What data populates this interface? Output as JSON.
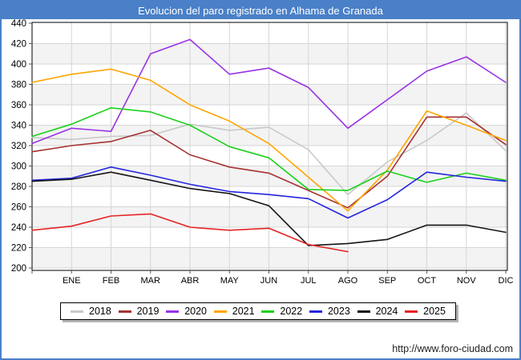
{
  "header": {
    "title": "Evolucion del paro registrado en Alhama de Granada"
  },
  "footer": {
    "url": "http://www.foro-ciudad.com"
  },
  "chart_data": {
    "type": "line",
    "title": "Evolucion del paro registrado en Alhama de Granada",
    "categories": [
      "ENE",
      "FEB",
      "MAR",
      "ABR",
      "MAY",
      "JUN",
      "JUL",
      "AGO",
      "SEP",
      "OCT",
      "NOV",
      "DIC"
    ],
    "xlabel": "",
    "ylabel": "",
    "ylim": [
      200,
      440
    ],
    "ytick_step": 20,
    "grid": true,
    "legend_position": "bottom",
    "plot_band_color": "#f3f3f3",
    "grid_color": "#d6d6d6",
    "series": [
      {
        "name": "2018",
        "color": "#c9c9c9",
        "axis_start": 328,
        "values": [
          326,
          329,
          330,
          341,
          335,
          338,
          316,
          272,
          304,
          325,
          352,
          315
        ]
      },
      {
        "name": "2019",
        "color": "#a63232",
        "axis_start": 314,
        "values": [
          320,
          324,
          335,
          311,
          299,
          293,
          276,
          259,
          290,
          348,
          348,
          321
        ]
      },
      {
        "name": "2020",
        "color": "#9933e6",
        "axis_start": 322,
        "values": [
          337,
          334,
          410,
          424,
          390,
          396,
          377,
          337,
          365,
          393,
          407,
          382
        ]
      },
      {
        "name": "2021",
        "color": "#ffa500",
        "axis_start": 382,
        "values": [
          390,
          395,
          384,
          360,
          344,
          322,
          289,
          256,
          296,
          354,
          340,
          325
        ]
      },
      {
        "name": "2022",
        "color": "#1ad11a",
        "axis_start": 329,
        "values": [
          341,
          357,
          353,
          340,
          319,
          308,
          277,
          276,
          295,
          284,
          293,
          286
        ]
      },
      {
        "name": "2023",
        "color": "#2424dd",
        "axis_start": 286,
        "values": [
          288,
          299,
          291,
          282,
          275,
          272,
          268,
          249,
          267,
          294,
          289,
          285
        ]
      },
      {
        "name": "2024",
        "color": "#141414",
        "axis_start": 285,
        "values": [
          287,
          294,
          286,
          278,
          273,
          261,
          222,
          224,
          228,
          242,
          242,
          235
        ]
      },
      {
        "name": "2025",
        "color": "#e62222",
        "axis_start": 237,
        "values": [
          241,
          251,
          253,
          240,
          237,
          239,
          223,
          216
        ]
      }
    ]
  }
}
